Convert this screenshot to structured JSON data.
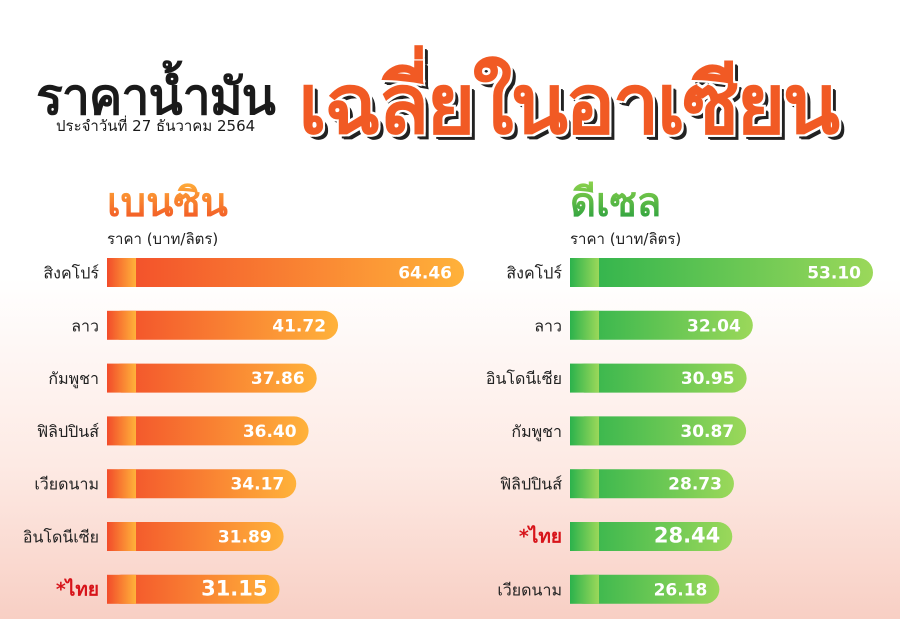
{
  "header": {
    "title_left": "ราคาน้ำมัน",
    "title_accent": "เฉลี่ยในอาเซียน",
    "subtitle": "ประจำวันที่ 27 ธันวาคม 2564"
  },
  "colors": {
    "benzin_start": "#f24b2a",
    "benzin_end": "#ffb23a",
    "diesel_start": "#2bb24c",
    "diesel_end": "#9bd85a",
    "highlight_text": "#d7141a",
    "benzin_title": "#f15a24",
    "diesel_title": "#2fae3f"
  },
  "chart_data": [
    {
      "type": "bar",
      "orientation": "horizontal",
      "title": "เบนซิน",
      "ylabel": "ราคา (บาท/ลิตร)",
      "categories": [
        "สิงคโปร์",
        "ลาว",
        "กัมพูชา",
        "ฟิลิปปินส์",
        "เวียดนาม",
        "อินโดนีเซีย",
        "*ไทย"
      ],
      "values": [
        64.46,
        41.72,
        37.86,
        36.4,
        34.17,
        31.89,
        31.15
      ],
      "value_labels": [
        "64.46",
        "41.72",
        "37.86",
        "36.40",
        "34.17",
        "31.89",
        "31.15"
      ],
      "highlight_index": 6
    },
    {
      "type": "bar",
      "orientation": "horizontal",
      "title": "ดีเซล",
      "ylabel": "ราคา (บาท/ลิตร)",
      "categories": [
        "สิงคโปร์",
        "ลาว",
        "อินโดนีเซีย",
        "กัมพูชา",
        "ฟิลิปปินส์",
        "*ไทย",
        "เวียดนาม"
      ],
      "values": [
        53.1,
        32.04,
        30.95,
        30.87,
        28.73,
        28.44,
        26.18
      ],
      "value_labels": [
        "53.10",
        "32.04",
        "30.95",
        "30.87",
        "28.73",
        "28.44",
        "26.18"
      ],
      "highlight_index": 5
    }
  ]
}
